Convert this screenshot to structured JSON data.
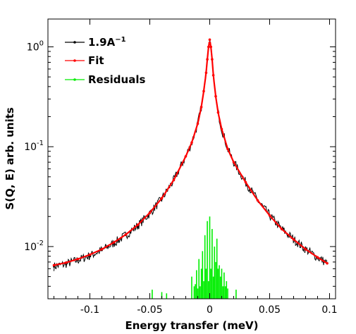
{
  "chart_data": {
    "type": "scatter",
    "xlabel": "Energy transfer (meV)",
    "ylabel": "S(Q, E) arb. units",
    "xlim": [
      -0.135,
      0.105
    ],
    "ylim": [
      0.003,
      1.9
    ],
    "yscale": "log",
    "grid": false,
    "legend_position": "top-left",
    "x_ticks": [
      -0.1,
      -0.05,
      0,
      0.05,
      0.1
    ],
    "x_tick_labels": [
      "-0.1",
      "-0.05",
      "0",
      "0.05",
      "0.1"
    ],
    "y_ticks": [
      0.01,
      0.1,
      1
    ],
    "y_tick_labels": [
      {
        "base": "10",
        "exp": "-2"
      },
      {
        "base": "10",
        "exp": "-1"
      },
      {
        "base": "10",
        "exp": "0"
      }
    ],
    "series": [
      {
        "name": "1.9A",
        "name_sup": "−1",
        "color": "#000000",
        "style": "noisy-line-markers",
        "x": [
          -0.13,
          -0.12,
          -0.11,
          -0.1,
          -0.09,
          -0.08,
          -0.07,
          -0.06,
          -0.05,
          -0.04,
          -0.03,
          -0.02,
          -0.015,
          -0.01,
          -0.007,
          -0.005,
          -0.003,
          -0.002,
          -0.001,
          0.0,
          0.001,
          0.002,
          0.003,
          0.005,
          0.007,
          0.01,
          0.015,
          0.02,
          0.03,
          0.04,
          0.05,
          0.06,
          0.07,
          0.08,
          0.09,
          0.098
        ],
        "y": [
          0.0063,
          0.0067,
          0.0073,
          0.0081,
          0.0092,
          0.0108,
          0.013,
          0.0162,
          0.0215,
          0.03,
          0.046,
          0.08,
          0.11,
          0.17,
          0.25,
          0.36,
          0.55,
          0.75,
          1.0,
          1.18,
          1.0,
          0.75,
          0.52,
          0.32,
          0.22,
          0.15,
          0.095,
          0.07,
          0.044,
          0.029,
          0.0205,
          0.015,
          0.0118,
          0.0094,
          0.0078,
          0.0068
        ]
      },
      {
        "name": "Fit",
        "color": "#ff0000",
        "style": "line-markers",
        "x": [
          -0.13,
          -0.12,
          -0.11,
          -0.1,
          -0.09,
          -0.08,
          -0.07,
          -0.06,
          -0.05,
          -0.04,
          -0.03,
          -0.02,
          -0.015,
          -0.01,
          -0.007,
          -0.005,
          -0.003,
          -0.002,
          -0.001,
          0.0,
          0.001,
          0.002,
          0.003,
          0.005,
          0.007,
          0.01,
          0.015,
          0.02,
          0.03,
          0.04,
          0.05,
          0.06,
          0.07,
          0.08,
          0.09,
          0.098
        ],
        "y": [
          0.0065,
          0.0069,
          0.0075,
          0.0083,
          0.0094,
          0.011,
          0.0132,
          0.0165,
          0.0218,
          0.0305,
          0.0465,
          0.08,
          0.11,
          0.17,
          0.25,
          0.36,
          0.55,
          0.75,
          1.0,
          1.18,
          1.0,
          0.75,
          0.52,
          0.32,
          0.22,
          0.15,
          0.095,
          0.07,
          0.044,
          0.029,
          0.0205,
          0.015,
          0.0118,
          0.0094,
          0.0078,
          0.0068
        ]
      },
      {
        "name": "Residuals",
        "color": "#00ee00",
        "style": "stems-from-bottom",
        "x": [
          -0.048,
          -0.04,
          -0.036,
          -0.015,
          -0.013,
          -0.012,
          -0.011,
          -0.01,
          -0.009,
          -0.008,
          -0.007,
          -0.006,
          -0.005,
          -0.004,
          -0.003,
          -0.002,
          -0.001,
          0.0,
          0.001,
          0.002,
          0.003,
          0.004,
          0.005,
          0.006,
          0.007,
          0.008,
          0.009,
          0.01,
          0.011,
          0.012,
          0.013,
          0.014,
          0.015,
          0.022
        ],
        "y": [
          0.0037,
          0.0035,
          0.0034,
          0.005,
          0.004,
          0.0042,
          0.0058,
          0.0038,
          0.0075,
          0.004,
          0.006,
          0.009,
          0.0045,
          0.013,
          0.006,
          0.018,
          0.0045,
          0.02,
          0.006,
          0.015,
          0.005,
          0.01,
          0.007,
          0.012,
          0.006,
          0.0065,
          0.005,
          0.006,
          0.004,
          0.0055,
          0.004,
          0.0045,
          0.0038,
          0.0037
        ]
      }
    ]
  }
}
